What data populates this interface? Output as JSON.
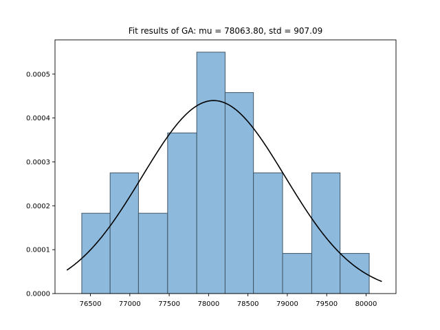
{
  "chart_data": {
    "type": "bar",
    "subtype": "histogram-with-fit-curve",
    "title": "Fit results of GA: mu = 78063.80,  std = 907.09",
    "xlabel": "",
    "ylabel": "",
    "xlim": [
      76050,
      80380
    ],
    "ylim": [
      0,
      0.000578
    ],
    "x_ticks": [
      76500,
      77000,
      77500,
      78000,
      78500,
      79000,
      79500,
      80000
    ],
    "x_tick_labels": [
      "76500",
      "77000",
      "77500",
      "78000",
      "78500",
      "79000",
      "79500",
      "80000"
    ],
    "y_ticks": [
      0,
      0.0001,
      0.0002,
      0.0003,
      0.0004,
      0.0005
    ],
    "y_tick_labels": [
      "0.0000",
      "0.0001",
      "0.0002",
      "0.0003",
      "0.0004",
      "0.0005"
    ],
    "bins": [
      {
        "x0": 76390,
        "x1": 76750,
        "value": 0.000183
      },
      {
        "x0": 76750,
        "x1": 77110,
        "value": 0.000275
      },
      {
        "x0": 77110,
        "x1": 77480,
        "value": 0.000183
      },
      {
        "x0": 77480,
        "x1": 77850,
        "value": 0.000366
      },
      {
        "x0": 77850,
        "x1": 78210,
        "value": 0.00055
      },
      {
        "x0": 78210,
        "x1": 78570,
        "value": 0.000458
      },
      {
        "x0": 78570,
        "x1": 78940,
        "value": 0.000275
      },
      {
        "x0": 78940,
        "x1": 79310,
        "value": 9.15e-05
      },
      {
        "x0": 79310,
        "x1": 79670,
        "value": 0.000275
      },
      {
        "x0": 79670,
        "x1": 80040,
        "value": 9.15e-05
      }
    ],
    "fit_curve": {
      "type": "normal-pdf",
      "mu": 78063.8,
      "std": 907.09,
      "x_range": [
        76200,
        80200
      ],
      "color": "#000000"
    },
    "bar_fill": "#8cb9dc",
    "bar_edge": "#3f5565",
    "grid": false
  }
}
